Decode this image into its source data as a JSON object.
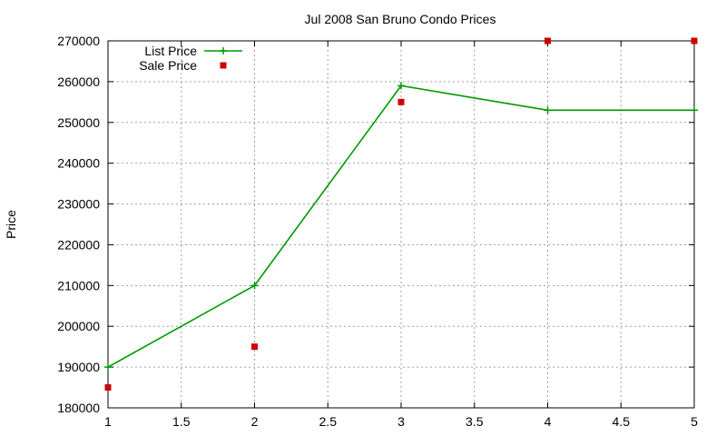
{
  "chart_data": {
    "type": "line",
    "title": "Jul 2008 San Bruno Condo Prices",
    "xlabel": "",
    "ylabel": "Price",
    "xlim": [
      1,
      5
    ],
    "ylim": [
      180000,
      270000
    ],
    "xticks": [
      1,
      1.5,
      2,
      2.5,
      3,
      3.5,
      4,
      4.5,
      5
    ],
    "xtick_labels": [
      "1",
      "1.5",
      "2",
      "2.5",
      "3",
      "3.5",
      "4",
      "4.5",
      "5"
    ],
    "yticks": [
      180000,
      190000,
      200000,
      210000,
      220000,
      230000,
      240000,
      250000,
      260000,
      270000
    ],
    "ytick_labels": [
      "180000",
      "190000",
      "200000",
      "210000",
      "220000",
      "230000",
      "240000",
      "250000",
      "260000",
      "270000"
    ],
    "grid": true,
    "legend_position": "top-left",
    "series": [
      {
        "name": "List Price",
        "style": "linespoints",
        "marker": "plus",
        "color": "#009900",
        "x": [
          1,
          2,
          3,
          4,
          5
        ],
        "y": [
          190000,
          210000,
          259000,
          253000,
          253000
        ]
      },
      {
        "name": "Sale Price",
        "style": "points",
        "marker": "square",
        "color": "#cc0000",
        "x": [
          1,
          2,
          3,
          4,
          5
        ],
        "y": [
          185000,
          195000,
          255000,
          270000,
          270000
        ]
      }
    ]
  }
}
